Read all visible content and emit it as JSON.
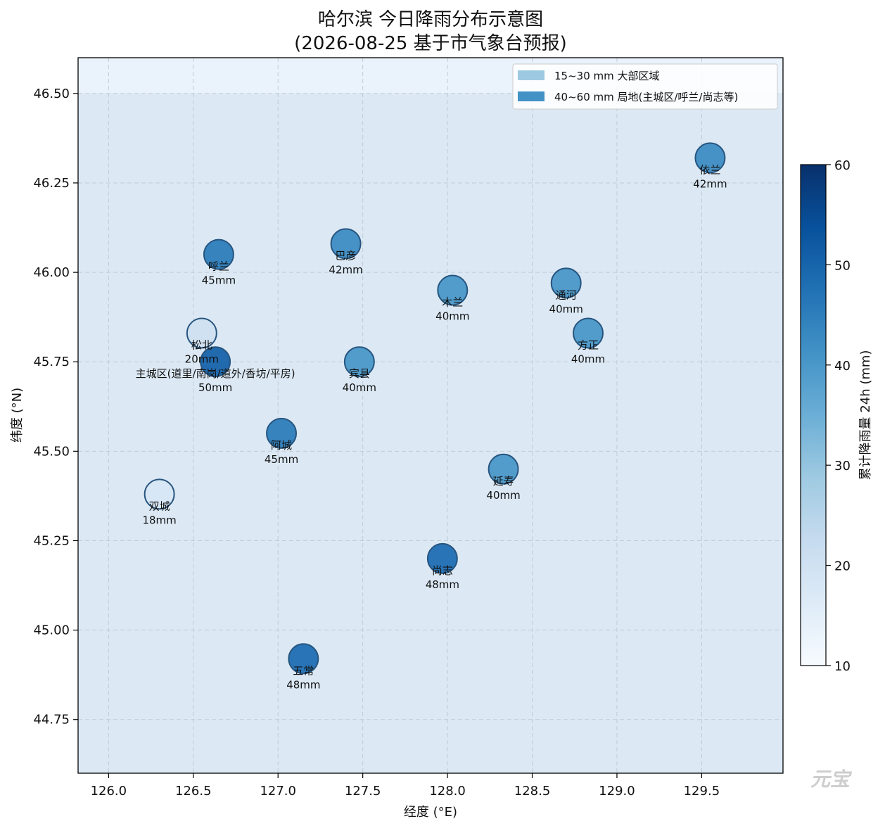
{
  "chart_data": {
    "type": "scatter",
    "title": [
      "哈尔滨 今日降雨分布示意图",
      "(2026-08-25 基于市气象台预报)"
    ],
    "xlabel": "经度 (°E)",
    "ylabel": "纬度 (°N)",
    "xlim": [
      125.82,
      129.98
    ],
    "ylim": [
      44.6,
      46.6
    ],
    "xticks": [
      126.0,
      126.5,
      127.0,
      127.5,
      128.0,
      128.5,
      129.0,
      129.5
    ],
    "xtick_labels": [
      "126.0",
      "126.5",
      "127.0",
      "127.5",
      "128.0",
      "128.5",
      "129.0",
      "129.5"
    ],
    "yticks": [
      44.75,
      45.0,
      45.25,
      45.5,
      45.75,
      46.0,
      46.25,
      46.5
    ],
    "ytick_labels": [
      "44.75",
      "45.00",
      "45.25",
      "45.50",
      "45.75",
      "46.00",
      "46.25",
      "46.50"
    ],
    "grid": true,
    "background_band": {
      "y_from": 44.6,
      "y_to": 46.5,
      "color": "#dce9f5"
    },
    "stations": [
      {
        "name": "依兰",
        "lon": 129.55,
        "lat": 46.32,
        "value": 42,
        "label": "42mm"
      },
      {
        "name": "呼兰",
        "lon": 126.65,
        "lat": 46.05,
        "value": 45,
        "label": "45mm"
      },
      {
        "name": "巴彦",
        "lon": 127.4,
        "lat": 46.08,
        "value": 42,
        "label": "42mm"
      },
      {
        "name": "木兰",
        "lon": 128.03,
        "lat": 45.95,
        "value": 40,
        "label": "40mm"
      },
      {
        "name": "通河",
        "lon": 128.7,
        "lat": 45.97,
        "value": 40,
        "label": "40mm"
      },
      {
        "name": "松北",
        "lon": 126.55,
        "lat": 45.83,
        "value": 20,
        "label": "20mm"
      },
      {
        "name": "方正",
        "lon": 128.83,
        "lat": 45.83,
        "value": 40,
        "label": "40mm"
      },
      {
        "name": "主城区(道里/南岗/道外/香坊/平房)",
        "lon": 126.63,
        "lat": 45.75,
        "value": 50,
        "label": "50mm"
      },
      {
        "name": "宾县",
        "lon": 127.48,
        "lat": 45.75,
        "value": 40,
        "label": "40mm"
      },
      {
        "name": "阿城",
        "lon": 127.02,
        "lat": 45.55,
        "value": 45,
        "label": "45mm"
      },
      {
        "name": "延寿",
        "lon": 128.33,
        "lat": 45.45,
        "value": 40,
        "label": "40mm"
      },
      {
        "name": "双城",
        "lon": 126.3,
        "lat": 45.38,
        "value": 18,
        "label": "18mm"
      },
      {
        "name": "尚志",
        "lon": 127.97,
        "lat": 45.2,
        "value": 48,
        "label": "48mm"
      },
      {
        "name": "五常",
        "lon": 127.15,
        "lat": 44.92,
        "value": 48,
        "label": "48mm"
      }
    ],
    "legend": {
      "position": "upper right",
      "entries": [
        {
          "label": "15~30 mm 大部区域",
          "color": "#9ecae1"
        },
        {
          "label": "40~60 mm 局地(主城区/呼兰/尚志等)",
          "color": "#4292c6"
        }
      ]
    },
    "colorbar": {
      "label": "累计降雨量 24h (mm)",
      "min": 10,
      "max": 60,
      "ticks": [
        10,
        20,
        30,
        40,
        50,
        60
      ],
      "colormap": "Blues"
    }
  },
  "watermark": "元宝"
}
